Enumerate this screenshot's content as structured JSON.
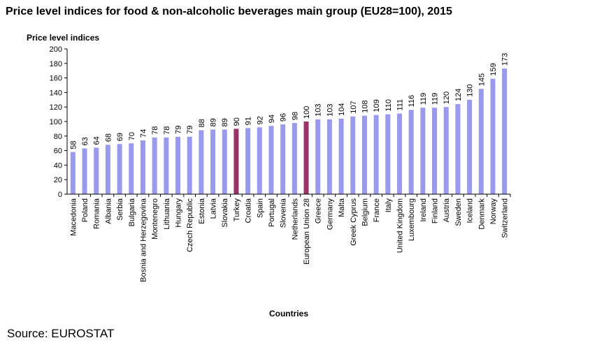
{
  "header": {
    "title": "Price level indices for food & non-alcoholic beverages main group (EU28=100), 2015"
  },
  "footer": {
    "source": "Source: EUROSTAT"
  },
  "colors": {
    "bar": "#9999ee",
    "highlight": "#993366",
    "axis": "#000000"
  },
  "chart_data": {
    "type": "bar",
    "title": "Price level indices for food & non-alcoholic beverages main group (EU28=100), 2015",
    "ylabel": "Price level indices",
    "xlabel": "Countries",
    "ylim": [
      0,
      200
    ],
    "yticks": [
      0,
      20,
      40,
      60,
      80,
      100,
      120,
      140,
      160,
      180,
      200
    ],
    "grid": false,
    "legend": "none",
    "highlighted": [
      "Turkey",
      "European Union 28"
    ],
    "categories": [
      "Macedonia",
      "Poland",
      "Romania",
      "Albania",
      "Serbia",
      "Bulgaria",
      "Bosnia and Herzegovina",
      "Montenegro",
      "Lithuania",
      "Hungary",
      "Czech Republic",
      "Estonia",
      "Latvia",
      "Slovakia",
      "Turkey",
      "Croatia",
      "Spain",
      "Portugal",
      "Slovenia",
      "Netherlands",
      "European Union 28",
      "Greece",
      "Germany",
      "Malta",
      "Greek Cyprus",
      "Belgium",
      "France",
      "Italy",
      "United Kingdom",
      "Luxembourg",
      "Ireland",
      "Finland",
      "Austria",
      "Sweden",
      "Iceland",
      "Denmark",
      "Norway",
      "Switzerland"
    ],
    "values": [
      58,
      63,
      64,
      68,
      69,
      70,
      74,
      78,
      78,
      79,
      79,
      88,
      89,
      89,
      90,
      91,
      92,
      94,
      96,
      98,
      100,
      103,
      103,
      104,
      107,
      108,
      109,
      110,
      111,
      116,
      119,
      119,
      120,
      124,
      130,
      145,
      159,
      173
    ]
  }
}
